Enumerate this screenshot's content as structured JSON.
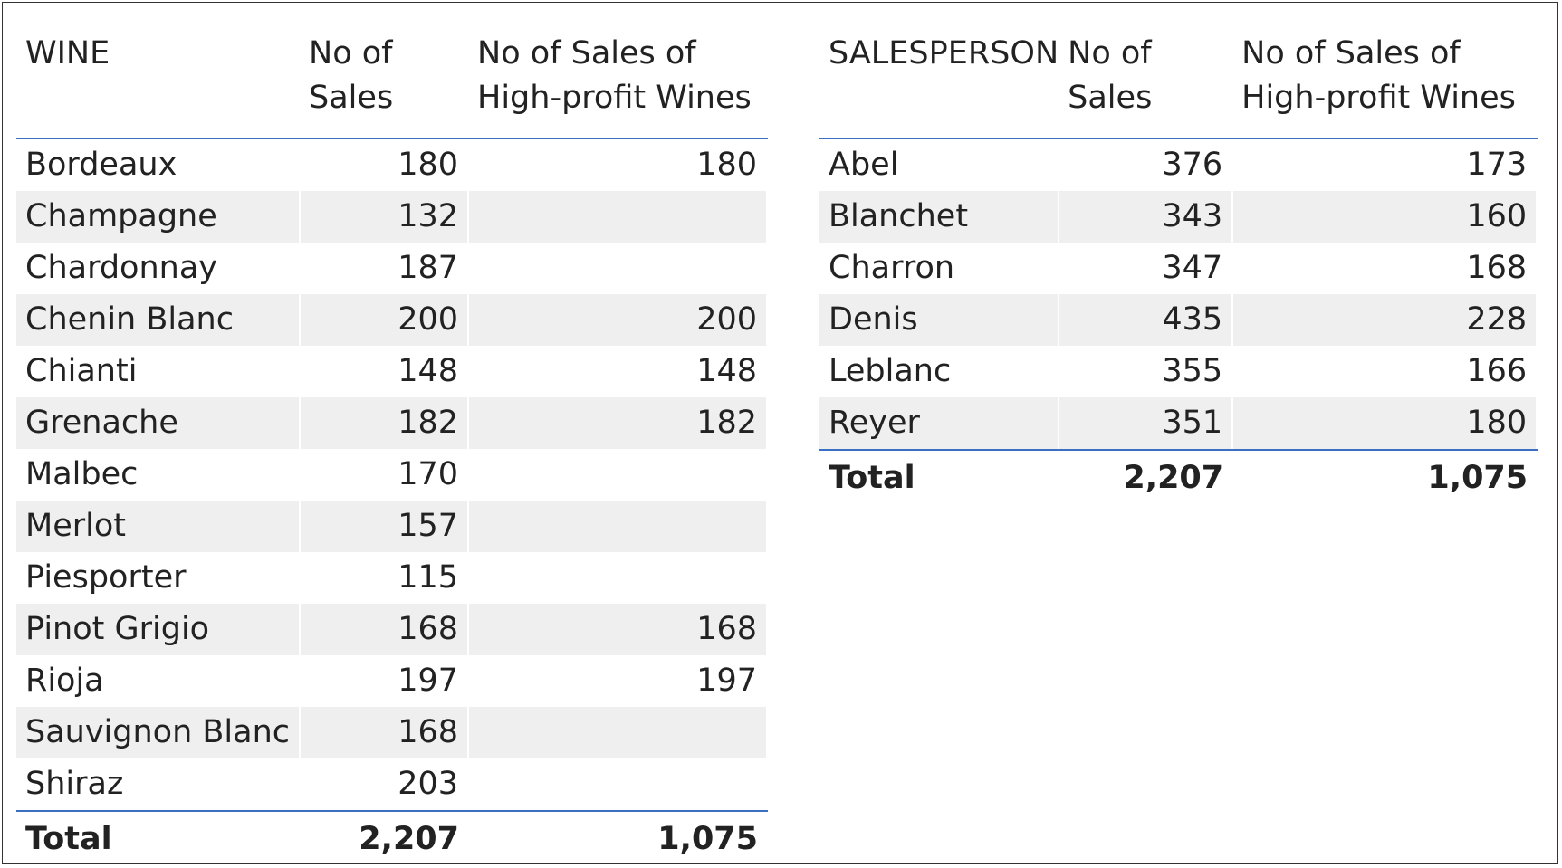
{
  "wine_table": {
    "headers": [
      "WINE",
      "No of\nSales",
      "No of Sales of\nHigh-profit Wines"
    ],
    "header_lines": [
      [
        "WINE"
      ],
      [
        "No of",
        "Sales"
      ],
      [
        "No of Sales of",
        "High-profit Wines"
      ]
    ],
    "rows": [
      {
        "name": "Bordeaux",
        "sales": "180",
        "high_profit": "180"
      },
      {
        "name": "Champagne",
        "sales": "132",
        "high_profit": ""
      },
      {
        "name": "Chardonnay",
        "sales": "187",
        "high_profit": ""
      },
      {
        "name": "Chenin Blanc",
        "sales": "200",
        "high_profit": "200"
      },
      {
        "name": "Chianti",
        "sales": "148",
        "high_profit": "148"
      },
      {
        "name": "Grenache",
        "sales": "182",
        "high_profit": "182"
      },
      {
        "name": "Malbec",
        "sales": "170",
        "high_profit": ""
      },
      {
        "name": "Merlot",
        "sales": "157",
        "high_profit": ""
      },
      {
        "name": "Piesporter",
        "sales": "115",
        "high_profit": ""
      },
      {
        "name": "Pinot Grigio",
        "sales": "168",
        "high_profit": "168"
      },
      {
        "name": "Rioja",
        "sales": "197",
        "high_profit": "197"
      },
      {
        "name": "Sauvignon Blanc",
        "sales": "168",
        "high_profit": ""
      },
      {
        "name": "Shiraz",
        "sales": "203",
        "high_profit": ""
      }
    ],
    "total": {
      "label": "Total",
      "sales": "2,207",
      "high_profit": "1,075"
    }
  },
  "salesperson_table": {
    "header_lines": [
      [
        "SALESPERSON"
      ],
      [
        "No of",
        "Sales"
      ],
      [
        "No of Sales of",
        "High-profit Wines"
      ]
    ],
    "rows": [
      {
        "name": "Abel",
        "sales": "376",
        "high_profit": "173"
      },
      {
        "name": "Blanchet",
        "sales": "343",
        "high_profit": "160"
      },
      {
        "name": "Charron",
        "sales": "347",
        "high_profit": "168"
      },
      {
        "name": "Denis",
        "sales": "435",
        "high_profit": "228"
      },
      {
        "name": "Leblanc",
        "sales": "355",
        "high_profit": "166"
      },
      {
        "name": "Reyer",
        "sales": "351",
        "high_profit": "180"
      }
    ],
    "total": {
      "label": "Total",
      "sales": "2,207",
      "high_profit": "1,075"
    }
  },
  "colors": {
    "accent_rule": "#3a6fc4",
    "banded_row": "#efefef"
  }
}
